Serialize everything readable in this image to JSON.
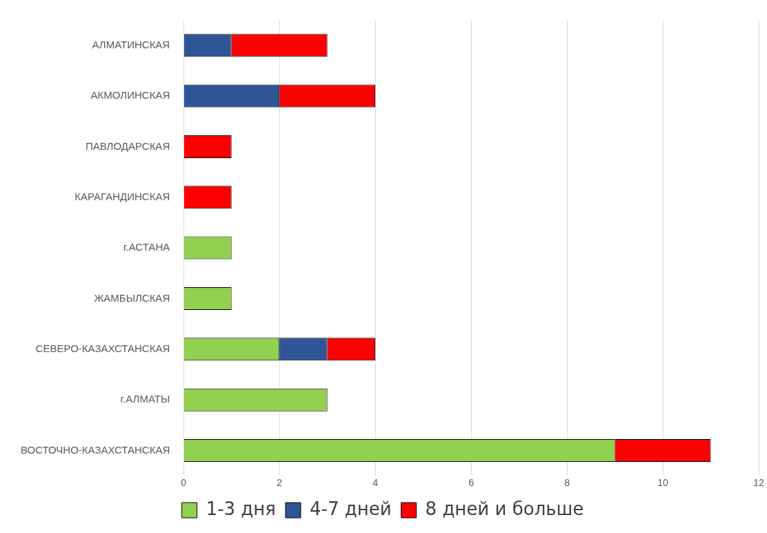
{
  "chart_data": {
    "type": "bar",
    "orientation": "horizontal",
    "stacked": true,
    "categories": [
      "АЛМАТИНСКАЯ",
      "АКМОЛИНСКАЯ",
      "ПАВЛОДАРСКАЯ",
      "КАРАГАНДИНСКАЯ",
      "г.АСТАНА",
      "ЖАМБЫЛСКАЯ",
      "СЕВЕРО-КАЗАХСТАНСКАЯ",
      "г.АЛМАТЫ",
      "ВОСТОЧНО-КАЗАХСТАНСКАЯ"
    ],
    "series": [
      {
        "name": "1-3 дня",
        "color": "#92d050",
        "values": [
          null,
          null,
          null,
          null,
          1,
          1,
          2,
          3,
          9
        ]
      },
      {
        "name": "4-7 дней",
        "color": "#2f5597",
        "values": [
          1,
          2,
          null,
          null,
          null,
          null,
          1,
          null,
          null
        ]
      },
      {
        "name": "8 дней и больше",
        "color": "#ff0000",
        "values": [
          2,
          2,
          1,
          1,
          null,
          null,
          1,
          null,
          2
        ]
      }
    ],
    "xlim": [
      0,
      12
    ],
    "xticks": [
      0,
      2,
      4,
      6,
      8,
      10,
      12
    ],
    "grid": "x",
    "legend": "bottom"
  }
}
